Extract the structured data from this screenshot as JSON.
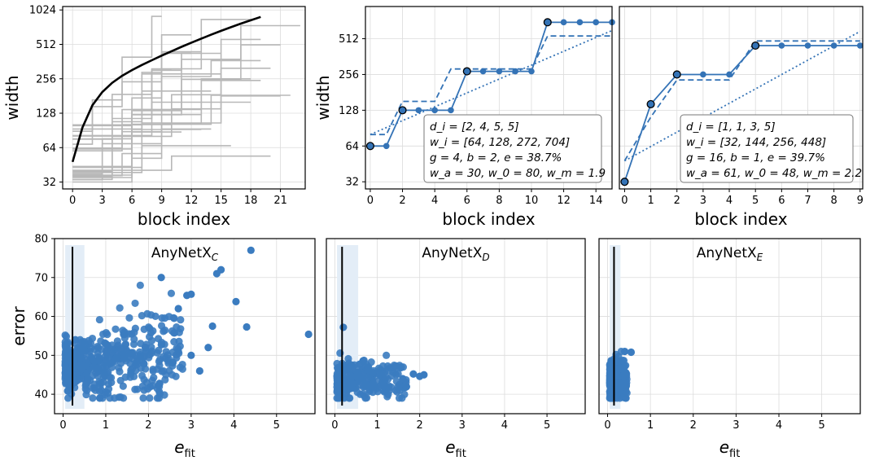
{
  "chart_data": [
    {
      "type": "line",
      "panel": "grid-of-random-widths",
      "xlabel": "block index",
      "ylabel": "width",
      "x_ticks": [
        "0",
        "3",
        "6",
        "9",
        "12",
        "15",
        "18",
        "21"
      ],
      "y_ticks": [
        "32",
        "64",
        "128",
        "256",
        "512",
        "1024"
      ],
      "xlim": [
        -1,
        23.5
      ],
      "ylim_log2": [
        4.8,
        10.1
      ],
      "fit_curve": {
        "x": [
          0,
          1,
          2,
          3,
          4,
          5,
          6,
          7,
          8,
          9,
          10,
          11,
          12,
          13,
          14,
          15,
          16,
          17,
          18,
          19
        ],
        "y": [
          48,
          96,
          150,
          196,
          236,
          272,
          305,
          338,
          372,
          408,
          446,
          487,
          530,
          575,
          622,
          672,
          724,
          778,
          832,
          890
        ]
      },
      "colors": {
        "fit": "#000000",
        "samples": "#b8b8b8"
      }
    },
    {
      "type": "line",
      "panel": "example-1",
      "xlabel": "block index",
      "ylabel": "width",
      "x_ticks": [
        "0",
        "2",
        "4",
        "6",
        "8",
        "10",
        "12",
        "14"
      ],
      "y_ticks": [
        "32",
        "64",
        "128",
        "256",
        "512"
      ],
      "xlim": [
        -0.3,
        15
      ],
      "ylim_log2": [
        4.8,
        9.9
      ],
      "series": [
        {
          "name": "quantized",
          "style": "solid",
          "x": [
            0,
            1,
            2,
            3,
            4,
            5,
            6,
            7,
            8,
            9,
            10,
            11,
            12,
            13,
            14,
            15
          ],
          "y": [
            64,
            64,
            128,
            128,
            128,
            128,
            272,
            272,
            272,
            272,
            272,
            704,
            704,
            704,
            704,
            704
          ]
        },
        {
          "name": "dashed",
          "style": "dashed",
          "x": [
            0,
            1,
            2,
            3,
            4,
            5,
            6,
            7,
            8,
            9,
            10,
            11,
            12,
            13,
            14,
            15
          ],
          "y": [
            80,
            80,
            152,
            152,
            152,
            285,
            285,
            285,
            285,
            285,
            285,
            540,
            540,
            540,
            540,
            540
          ]
        },
        {
          "name": "linear",
          "style": "dotted",
          "x": [
            0,
            15
          ],
          "y": [
            80,
            600
          ]
        }
      ],
      "highlighted": {
        "x": [
          0,
          2,
          6,
          11
        ],
        "y": [
          64,
          128,
          272,
          704
        ]
      },
      "annotation": [
        "d_i = [2, 4, 5, 5]",
        "w_i = [64, 128, 272, 704]",
        "g = 4, b = 2, e = 38.7%",
        "w_a = 30, w_0 = 80, w_m = 1.9"
      ]
    },
    {
      "type": "line",
      "panel": "example-2",
      "xlabel": "block index",
      "ylabel": "",
      "x_ticks": [
        "0",
        "1",
        "2",
        "3",
        "4",
        "5",
        "6",
        "7",
        "8",
        "9"
      ],
      "y_ticks": [],
      "xlim": [
        -0.2,
        9.1
      ],
      "ylim_log2": [
        4.8,
        9.9
      ],
      "series": [
        {
          "name": "quantized",
          "style": "solid",
          "x": [
            0,
            1,
            2,
            3,
            4,
            5,
            6,
            7,
            8,
            9
          ],
          "y": [
            32,
            144,
            256,
            256,
            256,
            448,
            448,
            448,
            448,
            448
          ]
        },
        {
          "name": "dashed",
          "style": "dashed",
          "x": [
            0,
            1,
            2,
            3,
            4,
            5,
            6,
            7,
            8,
            9
          ],
          "y": [
            48,
            112,
            230,
            230,
            230,
            490,
            490,
            490,
            490,
            490
          ]
        },
        {
          "name": "linear",
          "style": "dotted",
          "x": [
            0,
            9
          ],
          "y": [
            48,
            590
          ]
        }
      ],
      "highlighted": {
        "x": [
          0,
          1,
          2,
          5
        ],
        "y": [
          32,
          144,
          256,
          448
        ]
      },
      "annotation": [
        "d_i = [1, 1, 3, 5]",
        "w_i = [32, 144, 256, 448]",
        "g = 16, b = 1, e = 39.7%",
        "w_a = 61, w_0 = 48, w_m = 2.2"
      ]
    },
    {
      "type": "scatter",
      "panel": "AnyNetX_C",
      "title": "AnyNetX",
      "title_sub": "C",
      "xlabel": "e",
      "xlabel_sub": "fit",
      "ylabel": "error",
      "x_ticks": [
        "0",
        "1",
        "2",
        "3",
        "4",
        "5"
      ],
      "y_ticks": [
        "40",
        "50",
        "60",
        "70",
        "80"
      ],
      "xlim": [
        -0.2,
        5.9
      ],
      "ylim": [
        35,
        80
      ],
      "vline": 0.22,
      "band": [
        0.05,
        0.5
      ],
      "points": {
        "x": [
          5.75,
          4.4,
          3.7,
          3.6,
          2.3,
          4.3,
          4.05,
          3.5,
          3.0,
          2.9,
          2.7,
          3.4,
          3.0,
          3.2
        ],
        "y": [
          55.4,
          77,
          72,
          71,
          70,
          57.3,
          63.8,
          57.5,
          65.7,
          65.4,
          62,
          52,
          50,
          46
        ]
      },
      "cluster": {
        "x_range": [
          0.05,
          2.8
        ],
        "y_center": 47,
        "y_spread_base": 3,
        "y_spread_gain": 4.5,
        "count": 520,
        "seed": 11
      }
    },
    {
      "type": "scatter",
      "panel": "AnyNetX_D",
      "title": "AnyNetX",
      "title_sub": "D",
      "xlabel": "e",
      "xlabel_sub": "fit",
      "ylabel": "",
      "x_ticks": [
        "0",
        "1",
        "2",
        "3",
        "4",
        "5"
      ],
      "y_ticks": [],
      "xlim": [
        -0.2,
        5.9
      ],
      "ylim": [
        35,
        80
      ],
      "vline": 0.17,
      "band": [
        0.05,
        0.55
      ],
      "points": {
        "x": [
          0.2,
          2.1,
          2.0,
          1.85,
          1.6
        ],
        "y": [
          57.2,
          45,
          44.6,
          45.2,
          44
        ]
      },
      "cluster": {
        "x_range": [
          0.05,
          1.7
        ],
        "y_center": 43.5,
        "y_spread_base": 2.4,
        "y_spread_gain": 0.8,
        "count": 260,
        "seed": 23
      }
    },
    {
      "type": "scatter",
      "panel": "AnyNetX_E",
      "title": "AnyNetX",
      "title_sub": "E",
      "xlabel": "e",
      "xlabel_sub": "fit",
      "ylabel": "",
      "x_ticks": [
        "0",
        "1",
        "2",
        "3",
        "4",
        "5"
      ],
      "y_ticks": [],
      "xlim": [
        -0.2,
        5.9
      ],
      "ylim": [
        35,
        80
      ],
      "vline": 0.15,
      "band": [
        0.05,
        0.3
      ],
      "points": {
        "x": [
          0.55,
          0.4
        ],
        "y": [
          50.8,
          51
        ]
      },
      "cluster": {
        "x_range": [
          0.05,
          0.45
        ],
        "y_center": 43.5,
        "y_spread_base": 2.6,
        "y_spread_gain": 0.5,
        "count": 220,
        "seed": 37
      }
    }
  ]
}
